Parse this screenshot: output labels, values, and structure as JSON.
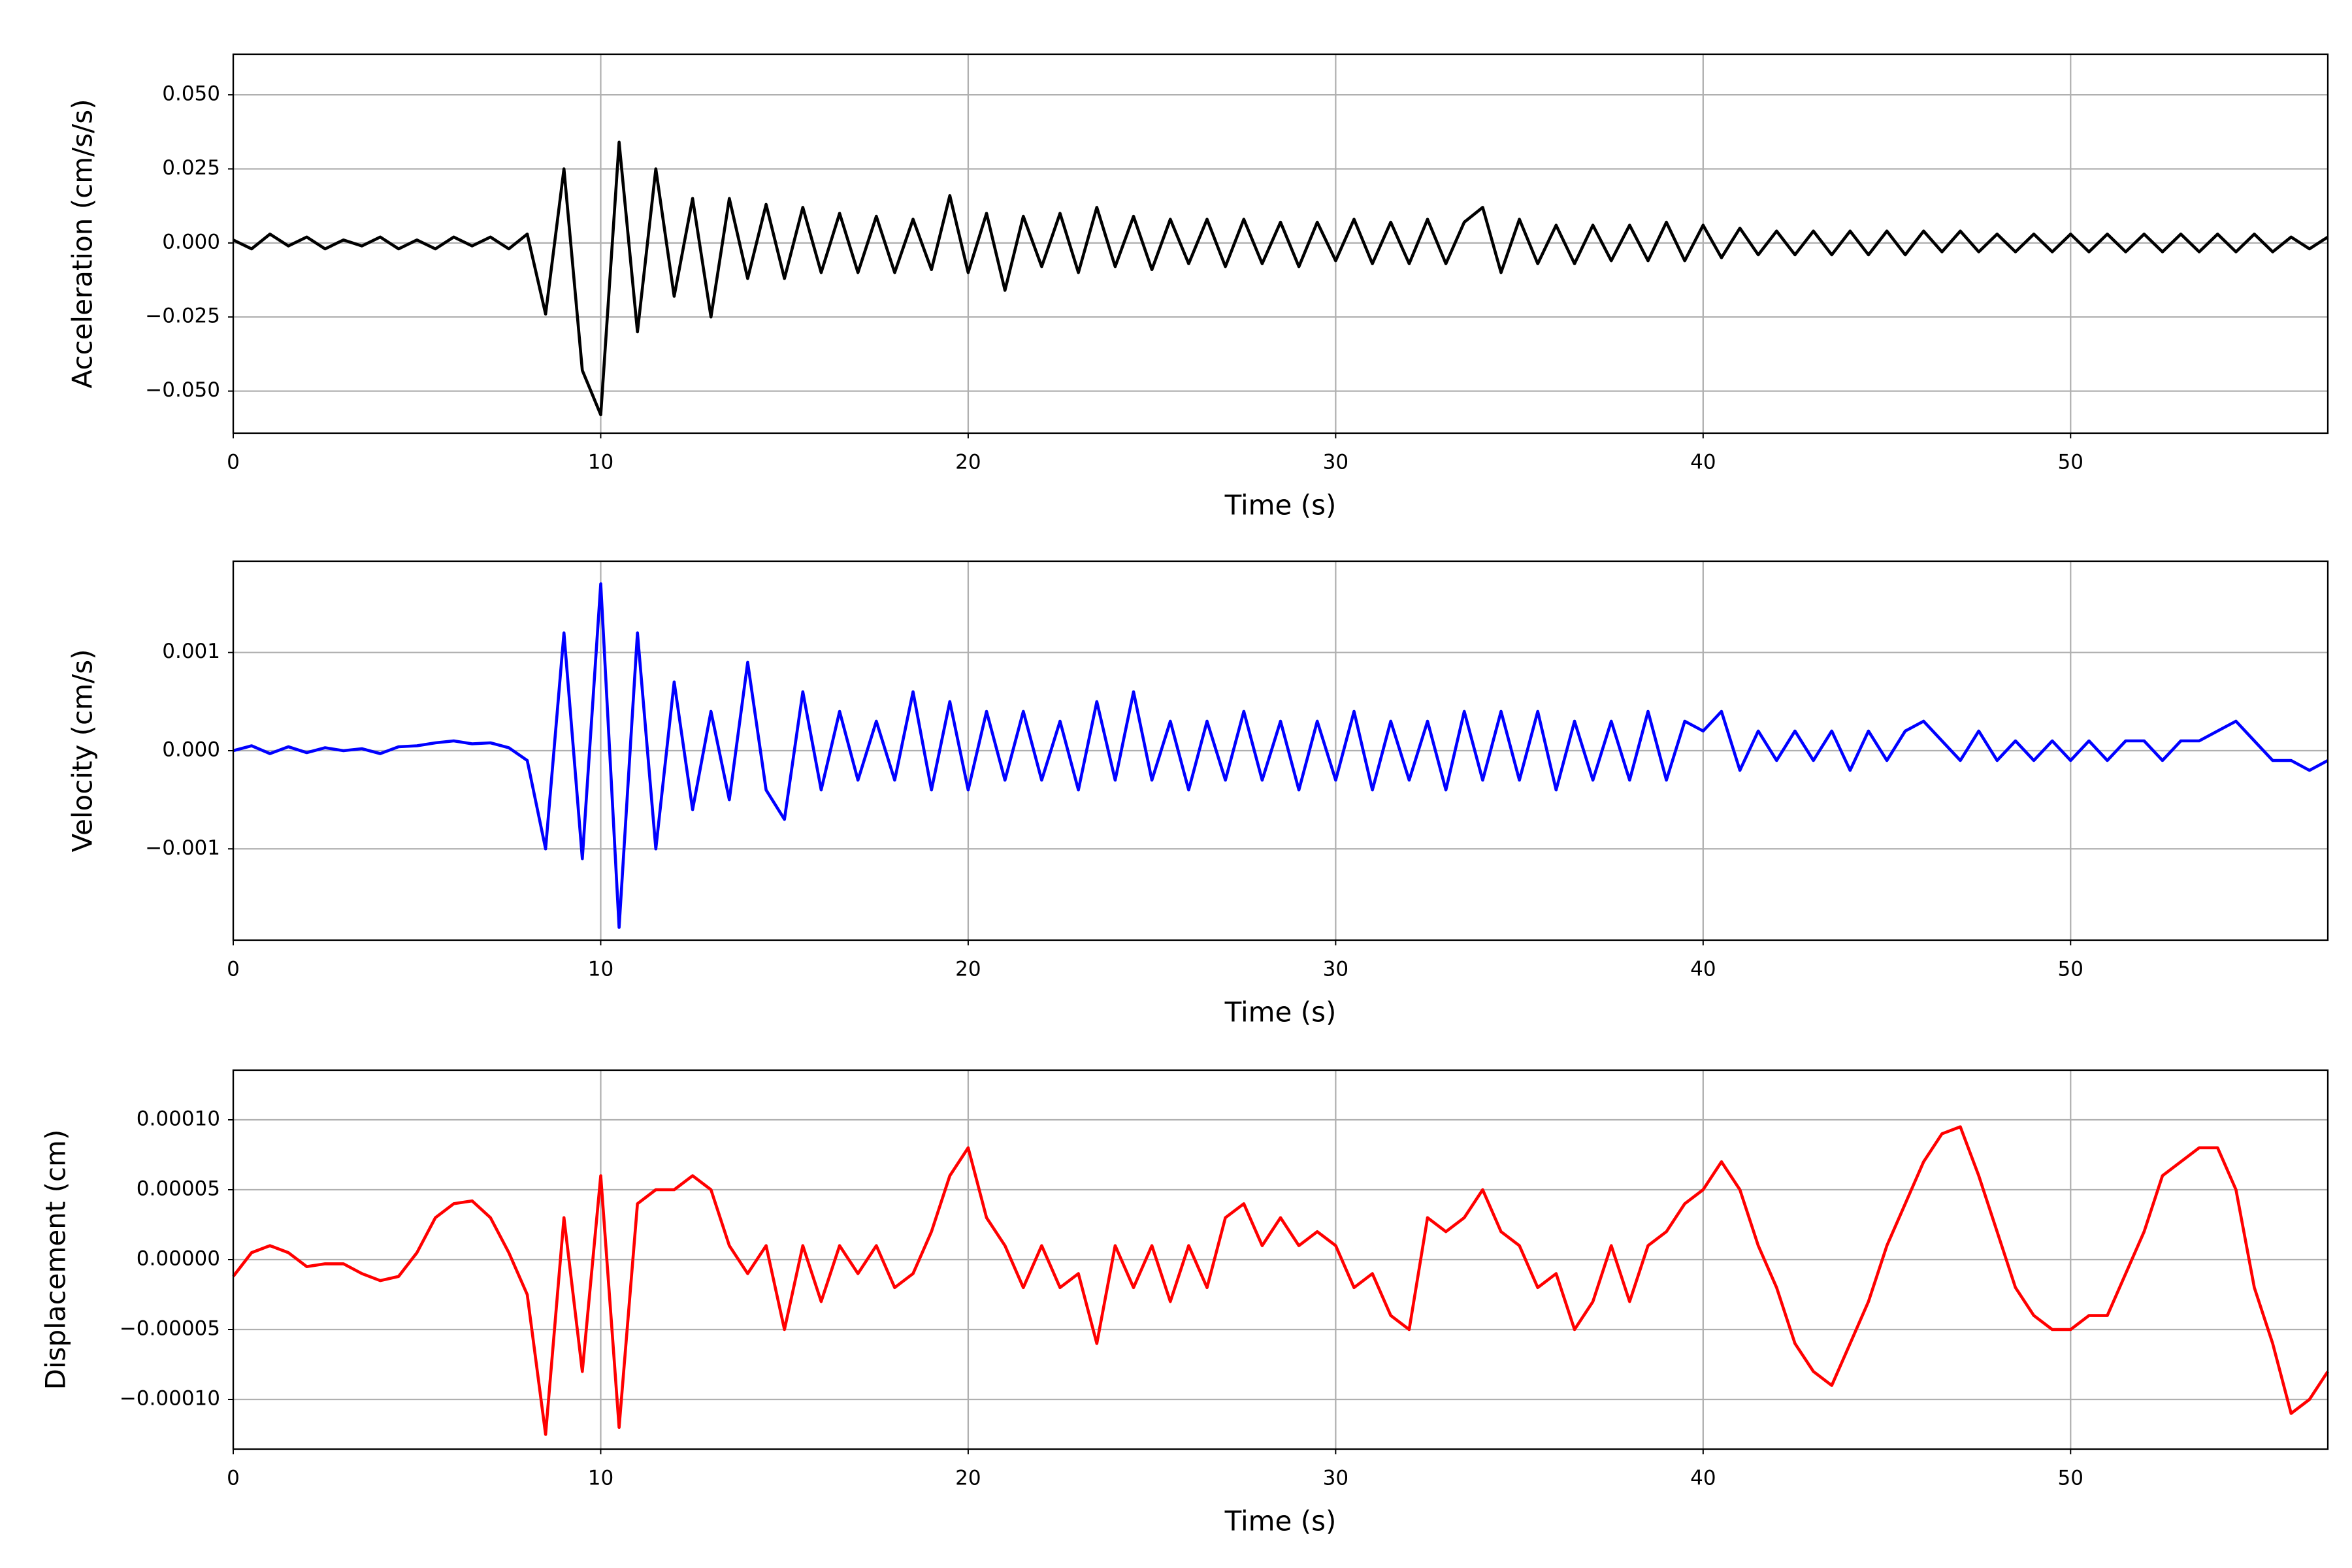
{
  "chart_data": [
    {
      "type": "line",
      "ylabel": "Acceleration (cm/s/s)",
      "xlabel": "Time (s)",
      "color": "#000000",
      "grid": true,
      "xlim": [
        0,
        57
      ],
      "ylim": [
        -0.0642,
        0.0637
      ],
      "xticks": [
        0,
        10,
        20,
        30,
        40,
        50
      ],
      "yticks": [
        {
          "value": -0.05,
          "label": "−0.050"
        },
        {
          "value": -0.025,
          "label": "−0.025"
        },
        {
          "value": 0,
          "label": "0.000"
        },
        {
          "value": 0.025,
          "label": "0.025"
        },
        {
          "value": 0.05,
          "label": "0.050"
        }
      ],
      "x": [
        0,
        0.5,
        1,
        1.5,
        2,
        2.5,
        3,
        3.5,
        4,
        4.5,
        5,
        5.5,
        6,
        6.5,
        7,
        7.5,
        8,
        8.5,
        9,
        9.5,
        10,
        10.5,
        11,
        11.5,
        12,
        12.5,
        13,
        13.5,
        14,
        14.5,
        15,
        15.5,
        16,
        16.5,
        17,
        17.5,
        18,
        18.5,
        19,
        19.5,
        20,
        20.5,
        21,
        21.5,
        22,
        22.5,
        23,
        23.5,
        24,
        24.5,
        25,
        25.5,
        26,
        26.5,
        27,
        27.5,
        28,
        28.5,
        29,
        29.5,
        30,
        30.5,
        31,
        31.5,
        32,
        32.5,
        33,
        33.5,
        34,
        34.5,
        35,
        35.5,
        36,
        36.5,
        37,
        37.5,
        38,
        38.5,
        39,
        39.5,
        40,
        40.5,
        41,
        41.5,
        42,
        42.5,
        43,
        43.5,
        44,
        44.5,
        45,
        45.5,
        46,
        46.5,
        47,
        47.5,
        48,
        48.5,
        49,
        49.5,
        50,
        50.5,
        51,
        51.5,
        52,
        52.5,
        53,
        53.5,
        54,
        54.5,
        55,
        55.5,
        56,
        56.5,
        57
      ],
      "values": [
        0.001,
        -0.002,
        0.003,
        -0.001,
        0.002,
        -0.002,
        0.001,
        -0.001,
        0.002,
        -0.002,
        0.001,
        -0.002,
        0.002,
        -0.001,
        0.002,
        -0.002,
        0.003,
        -0.024,
        0.025,
        -0.043,
        -0.058,
        0.034,
        -0.03,
        0.025,
        -0.018,
        0.015,
        -0.025,
        0.015,
        -0.012,
        0.013,
        -0.012,
        0.012,
        -0.01,
        0.01,
        -0.01,
        0.009,
        -0.01,
        0.008,
        -0.009,
        0.016,
        -0.01,
        0.01,
        -0.016,
        0.009,
        -0.008,
        0.01,
        -0.01,
        0.012,
        -0.008,
        0.009,
        -0.009,
        0.008,
        -0.007,
        0.008,
        -0.008,
        0.008,
        -0.007,
        0.007,
        -0.008,
        0.007,
        -0.006,
        0.008,
        -0.007,
        0.007,
        -0.007,
        0.008,
        -0.007,
        0.007,
        0.012,
        -0.01,
        0.008,
        -0.007,
        0.006,
        -0.007,
        0.006,
        -0.006,
        0.006,
        -0.006,
        0.007,
        -0.006,
        0.006,
        -0.005,
        0.005,
        -0.004,
        0.004,
        -0.004,
        0.004,
        -0.004,
        0.004,
        -0.004,
        0.004,
        -0.004,
        0.004,
        -0.003,
        0.004,
        -0.003,
        0.003,
        -0.003,
        0.003,
        -0.003,
        0.003,
        -0.003,
        0.003,
        -0.003,
        0.003,
        -0.003,
        0.003,
        -0.003,
        0.003,
        -0.003,
        0.003,
        -0.003,
        0.002,
        -0.002,
        0.002
      ]
    },
    {
      "type": "line",
      "ylabel": "Velocity (cm/s)",
      "xlabel": "Time (s)",
      "color": "#0000ff",
      "grid": true,
      "xlim": [
        0,
        57
      ],
      "ylim": [
        -0.00193,
        0.00193
      ],
      "xticks": [
        0,
        10,
        20,
        30,
        40,
        50
      ],
      "yticks": [
        {
          "value": -0.001,
          "label": "−0.001"
        },
        {
          "value": 0,
          "label": "0.000"
        },
        {
          "value": 0.001,
          "label": "0.001"
        }
      ],
      "x": [
        0,
        0.5,
        1,
        1.5,
        2,
        2.5,
        3,
        3.5,
        4,
        4.5,
        5,
        5.5,
        6,
        6.5,
        7,
        7.5,
        8,
        8.5,
        9,
        9.5,
        10,
        10.5,
        11,
        11.5,
        12,
        12.5,
        13,
        13.5,
        14,
        14.5,
        15,
        15.5,
        16,
        16.5,
        17,
        17.5,
        18,
        18.5,
        19,
        19.5,
        20,
        20.5,
        21,
        21.5,
        22,
        22.5,
        23,
        23.5,
        24,
        24.5,
        25,
        25.5,
        26,
        26.5,
        27,
        27.5,
        28,
        28.5,
        29,
        29.5,
        30,
        30.5,
        31,
        31.5,
        32,
        32.5,
        33,
        33.5,
        34,
        34.5,
        35,
        35.5,
        36,
        36.5,
        37,
        37.5,
        38,
        38.5,
        39,
        39.5,
        40,
        40.5,
        41,
        41.5,
        42,
        42.5,
        43,
        43.5,
        44,
        44.5,
        45,
        45.5,
        46,
        46.5,
        47,
        47.5,
        48,
        48.5,
        49,
        49.5,
        50,
        50.5,
        51,
        51.5,
        52,
        52.5,
        53,
        53.5,
        54,
        54.5,
        55,
        55.5,
        56,
        56.5,
        57
      ],
      "values": [
        0,
        5e-05,
        -3e-05,
        4e-05,
        -2e-05,
        3e-05,
        0,
        2e-05,
        -3e-05,
        4e-05,
        5e-05,
        8e-05,
        0.0001,
        7e-05,
        8e-05,
        3e-05,
        -0.0001,
        -0.001,
        0.0012,
        -0.0011,
        0.0017,
        -0.0018,
        0.0012,
        -0.001,
        0.0007,
        -0.0006,
        0.0004,
        -0.0005,
        0.0009,
        -0.0004,
        -0.0007,
        0.0006,
        -0.0004,
        0.0004,
        -0.0003,
        0.0003,
        -0.0003,
        0.0006,
        -0.0004,
        0.0005,
        -0.0004,
        0.0004,
        -0.0003,
        0.0004,
        -0.0003,
        0.0003,
        -0.0004,
        0.0005,
        -0.0003,
        0.0006,
        -0.0003,
        0.0003,
        -0.0004,
        0.0003,
        -0.0003,
        0.0004,
        -0.0003,
        0.0003,
        -0.0004,
        0.0003,
        -0.0003,
        0.0004,
        -0.0004,
        0.0003,
        -0.0003,
        0.0003,
        -0.0004,
        0.0004,
        -0.0003,
        0.0004,
        -0.0003,
        0.0004,
        -0.0004,
        0.0003,
        -0.0003,
        0.0003,
        -0.0003,
        0.0004,
        -0.0003,
        0.0003,
        0.0002,
        0.0004,
        -0.0002,
        0.0002,
        -0.0001,
        0.0002,
        -0.0001,
        0.0002,
        -0.0002,
        0.0002,
        -0.0001,
        0.0002,
        0.0003,
        0.0001,
        -0.0001,
        0.0002,
        -0.0001,
        0.0001,
        -0.0001,
        0.0001,
        -0.0001,
        0.0001,
        -0.0001,
        0.0001,
        0.0001,
        -0.0001,
        0.0001,
        0.0001,
        0.0002,
        0.0003,
        0.0001,
        -0.0001,
        -0.0001,
        -0.0002,
        -0.0001
      ]
    },
    {
      "type": "line",
      "ylabel": "Displacement (cm)",
      "xlabel": "Time (s)",
      "color": "#ff0000",
      "grid": true,
      "xlim": [
        0,
        57
      ],
      "ylim": [
        -0.0001355,
        0.0001355
      ],
      "xticks": [
        0,
        10,
        20,
        30,
        40,
        50
      ],
      "yticks": [
        {
          "value": -0.0001,
          "label": "−0.00010"
        },
        {
          "value": -5e-05,
          "label": "−0.00005"
        },
        {
          "value": 0,
          "label": "0.00000"
        },
        {
          "value": 5e-05,
          "label": "0.00005"
        },
        {
          "value": 0.0001,
          "label": "0.00010"
        }
      ],
      "x": [
        0,
        0.5,
        1,
        1.5,
        2,
        2.5,
        3,
        3.5,
        4,
        4.5,
        5,
        5.5,
        6,
        6.5,
        7,
        7.5,
        8,
        8.5,
        9,
        9.5,
        10,
        10.5,
        11,
        11.5,
        12,
        12.5,
        13,
        13.5,
        14,
        14.5,
        15,
        15.5,
        16,
        16.5,
        17,
        17.5,
        18,
        18.5,
        19,
        19.5,
        20,
        20.5,
        21,
        21.5,
        22,
        22.5,
        23,
        23.5,
        24,
        24.5,
        25,
        25.5,
        26,
        26.5,
        27,
        27.5,
        28,
        28.5,
        29,
        29.5,
        30,
        30.5,
        31,
        31.5,
        32,
        32.5,
        33,
        33.5,
        34,
        34.5,
        35,
        35.5,
        36,
        36.5,
        37,
        37.5,
        38,
        38.5,
        39,
        39.5,
        40,
        40.5,
        41,
        41.5,
        42,
        42.5,
        43,
        43.5,
        44,
        44.5,
        45,
        45.5,
        46,
        46.5,
        47,
        47.5,
        48,
        48.5,
        49,
        49.5,
        50,
        50.5,
        51,
        51.5,
        52,
        52.5,
        53,
        53.5,
        54,
        54.5,
        55,
        55.5,
        56,
        56.5,
        57
      ],
      "values": [
        -1.2e-05,
        5e-06,
        1e-05,
        5e-06,
        -5e-06,
        -3e-06,
        -3e-06,
        -1e-05,
        -1.5e-05,
        -1.2e-05,
        5e-06,
        3e-05,
        4e-05,
        4.2e-05,
        3e-05,
        5e-06,
        -2.5e-05,
        -0.000125,
        3e-05,
        -8e-05,
        6e-05,
        -0.00012,
        4e-05,
        5e-05,
        5e-05,
        6e-05,
        5e-05,
        1e-05,
        -1e-05,
        1e-05,
        -5e-05,
        1e-05,
        -3e-05,
        1e-05,
        -1e-05,
        1e-05,
        -2e-05,
        -1e-05,
        2e-05,
        6e-05,
        8e-05,
        3e-05,
        1e-05,
        -2e-05,
        1e-05,
        -2e-05,
        -1e-05,
        -6e-05,
        1e-05,
        -2e-05,
        1e-05,
        -3e-05,
        1e-05,
        -2e-05,
        3e-05,
        4e-05,
        1e-05,
        3e-05,
        1e-05,
        2e-05,
        1e-05,
        -2e-05,
        -1e-05,
        -4e-05,
        -5e-05,
        3e-05,
        2e-05,
        3e-05,
        5e-05,
        2e-05,
        1e-05,
        -2e-05,
        -1e-05,
        -5e-05,
        -3e-05,
        1e-05,
        -3e-05,
        1e-05,
        2e-05,
        4e-05,
        5e-05,
        7e-05,
        5e-05,
        1e-05,
        -2e-05,
        -6e-05,
        -8e-05,
        -9e-05,
        -6e-05,
        -3e-05,
        1e-05,
        4e-05,
        7e-05,
        9e-05,
        9.5e-05,
        6e-05,
        2e-05,
        -2e-05,
        -4e-05,
        -5e-05,
        -5e-05,
        -4e-05,
        -4e-05,
        -1e-05,
        2e-05,
        6e-05,
        7e-05,
        8e-05,
        8e-05,
        5e-05,
        -2e-05,
        -6e-05,
        -0.00011,
        -0.0001,
        -8e-05
      ]
    }
  ]
}
